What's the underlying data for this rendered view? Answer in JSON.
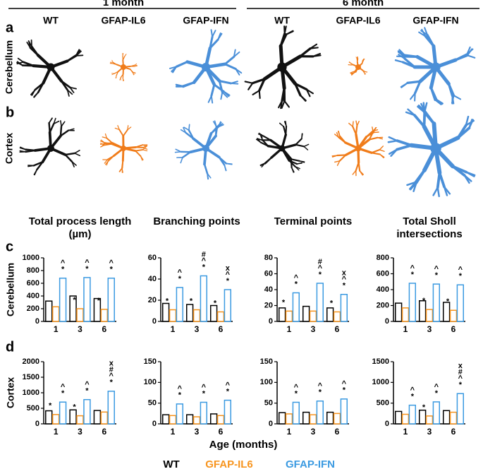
{
  "figure": {
    "header": [
      "1 month",
      "6 month"
    ],
    "columns": [
      "WT",
      "GFAP-IL6",
      "GFAP-IFN",
      "WT",
      "GFAP-IL6",
      "GFAP-IFN"
    ],
    "rows": [
      "Cerebellum",
      "Cortex"
    ],
    "panels": [
      "a",
      "b",
      "c",
      "d"
    ],
    "xlabel": "Age (months)"
  },
  "chart_data": [
    {
      "type": "bar",
      "title": "Total process length (µm)",
      "ylabel": "Cerebellum",
      "categories": [
        "1",
        "3",
        "6"
      ],
      "ylim": [
        0,
        1000
      ],
      "yticks": [
        0,
        200,
        400,
        600,
        800,
        1000
      ],
      "series": [
        {
          "name": "WT",
          "color": "#000000",
          "values": [
            320,
            400,
            360
          ],
          "annotations": [
            [],
            [],
            []
          ]
        },
        {
          "name": "GFAP-IL6",
          "color": "#f7941d",
          "values": [
            230,
            200,
            190
          ],
          "annotations": [
            [],
            [
              "*"
            ],
            [
              "*"
            ]
          ]
        },
        {
          "name": "GFAP-IFN",
          "color": "#3b9ae1",
          "values": [
            680,
            690,
            680
          ],
          "annotations": [
            [
              "*",
              "^"
            ],
            [
              "*",
              "^"
            ],
            [
              "*",
              "^"
            ]
          ]
        }
      ]
    },
    {
      "type": "bar",
      "title": "Branching points",
      "categories": [
        "1",
        "3",
        "6"
      ],
      "ylim": [
        0,
        60
      ],
      "yticks": [
        0,
        20,
        40,
        60
      ],
      "series": [
        {
          "name": "WT",
          "color": "#000000",
          "values": [
            17,
            16,
            15
          ],
          "annotations": [
            [],
            [],
            []
          ]
        },
        {
          "name": "GFAP-IL6",
          "color": "#f7941d",
          "values": [
            11,
            11,
            9
          ],
          "annotations": [
            [
              "*"
            ],
            [
              "*"
            ],
            [
              "*"
            ]
          ]
        },
        {
          "name": "GFAP-IFN",
          "color": "#3b9ae1",
          "values": [
            32,
            43,
            30
          ],
          "annotations": [
            [
              "*",
              "^"
            ],
            [
              "*",
              "^",
              "#"
            ],
            [
              "*",
              "^",
              "x"
            ]
          ]
        }
      ]
    },
    {
      "type": "bar",
      "title": "Terminal points",
      "categories": [
        "1",
        "3",
        "6"
      ],
      "ylim": [
        0,
        80
      ],
      "yticks": [
        0,
        20,
        40,
        60,
        80
      ],
      "series": [
        {
          "name": "WT",
          "color": "#000000",
          "values": [
            17,
            19,
            17
          ],
          "annotations": [
            [],
            [],
            []
          ]
        },
        {
          "name": "GFAP-IL6",
          "color": "#f7941d",
          "values": [
            13,
            13,
            12
          ],
          "annotations": [
            [
              "*"
            ],
            [],
            [
              "*"
            ]
          ]
        },
        {
          "name": "GFAP-IFN",
          "color": "#3b9ae1",
          "values": [
            36,
            48,
            34
          ],
          "annotations": [
            [
              "*",
              "^"
            ],
            [
              "*",
              "^",
              "#"
            ],
            [
              "*",
              "^",
              "x"
            ]
          ]
        }
      ]
    },
    {
      "type": "bar",
      "title": "Total Sholl intersections",
      "categories": [
        "1",
        "3",
        "6"
      ],
      "ylim": [
        0,
        800
      ],
      "yticks": [
        0,
        200,
        400,
        600,
        800
      ],
      "series": [
        {
          "name": "WT",
          "color": "#000000",
          "values": [
            230,
            260,
            240
          ],
          "annotations": [
            [],
            [],
            []
          ]
        },
        {
          "name": "GFAP-IL6",
          "color": "#f7941d",
          "values": [
            170,
            150,
            140
          ],
          "annotations": [
            [],
            [
              "*"
            ],
            [
              "*"
            ]
          ]
        },
        {
          "name": "GFAP-IFN",
          "color": "#3b9ae1",
          "values": [
            480,
            470,
            460
          ],
          "annotations": [
            [
              "*",
              "^"
            ],
            [
              "*",
              "^"
            ],
            [
              "*",
              "^"
            ]
          ]
        }
      ]
    },
    {
      "type": "bar",
      "ylabel": "Cortex",
      "categories": [
        "1",
        "3",
        "6"
      ],
      "ylim": [
        0,
        2000
      ],
      "yticks": [
        0,
        500,
        1000,
        1500,
        2000
      ],
      "series": [
        {
          "name": "WT",
          "color": "#000000",
          "values": [
            420,
            450,
            430
          ],
          "annotations": [
            [],
            [],
            []
          ]
        },
        {
          "name": "GFAP-IL6",
          "color": "#f7941d",
          "values": [
            300,
            260,
            380
          ],
          "annotations": [
            [
              "*"
            ],
            [
              "*"
            ],
            []
          ]
        },
        {
          "name": "GFAP-IFN",
          "color": "#3b9ae1",
          "values": [
            700,
            780,
            1050
          ],
          "annotations": [
            [
              "*",
              "^"
            ],
            [
              "*",
              "^"
            ],
            [
              "*",
              "^",
              "#",
              "x"
            ]
          ]
        }
      ]
    },
    {
      "type": "bar",
      "categories": [
        "1",
        "3",
        "6"
      ],
      "ylim": [
        0,
        150
      ],
      "yticks": [
        0,
        50,
        100,
        150
      ],
      "series": [
        {
          "name": "WT",
          "color": "#000000",
          "values": [
            22,
            22,
            24
          ],
          "annotations": [
            [],
            [],
            []
          ]
        },
        {
          "name": "GFAP-IL6",
          "color": "#f7941d",
          "values": [
            20,
            17,
            20
          ],
          "annotations": [
            [],
            [],
            []
          ]
        },
        {
          "name": "GFAP-IFN",
          "color": "#3b9ae1",
          "values": [
            48,
            52,
            57
          ],
          "annotations": [
            [
              "*",
              "^"
            ],
            [
              "*",
              "^"
            ],
            [
              "*",
              "^"
            ]
          ]
        }
      ]
    },
    {
      "type": "bar",
      "categories": [
        "1",
        "3",
        "6"
      ],
      "ylim": [
        0,
        150
      ],
      "yticks": [
        0,
        50,
        100,
        150
      ],
      "series": [
        {
          "name": "WT",
          "color": "#000000",
          "values": [
            27,
            28,
            28
          ],
          "annotations": [
            [],
            [],
            []
          ]
        },
        {
          "name": "GFAP-IL6",
          "color": "#f7941d",
          "values": [
            24,
            22,
            25
          ],
          "annotations": [
            [],
            [],
            []
          ]
        },
        {
          "name": "GFAP-IFN",
          "color": "#3b9ae1",
          "values": [
            52,
            55,
            60
          ],
          "annotations": [
            [
              "*",
              "^"
            ],
            [
              "*",
              "^"
            ],
            [
              "*",
              "^"
            ]
          ]
        }
      ]
    },
    {
      "type": "bar",
      "categories": [
        "1",
        "3",
        "6"
      ],
      "ylim": [
        0,
        1500
      ],
      "yticks": [
        0,
        500,
        1000,
        1500
      ],
      "series": [
        {
          "name": "WT",
          "color": "#000000",
          "values": [
            300,
            330,
            320
          ],
          "annotations": [
            [],
            [],
            []
          ]
        },
        {
          "name": "GFAP-IL6",
          "color": "#f7941d",
          "values": [
            230,
            190,
            280
          ],
          "annotations": [
            [],
            [
              "*"
            ],
            []
          ]
        },
        {
          "name": "GFAP-IFN",
          "color": "#3b9ae1",
          "values": [
            450,
            530,
            730
          ],
          "annotations": [
            [
              "*",
              "^"
            ],
            [
              "*",
              "^"
            ],
            [
              "*",
              "^",
              "#",
              "x"
            ]
          ]
        }
      ]
    }
  ]
}
